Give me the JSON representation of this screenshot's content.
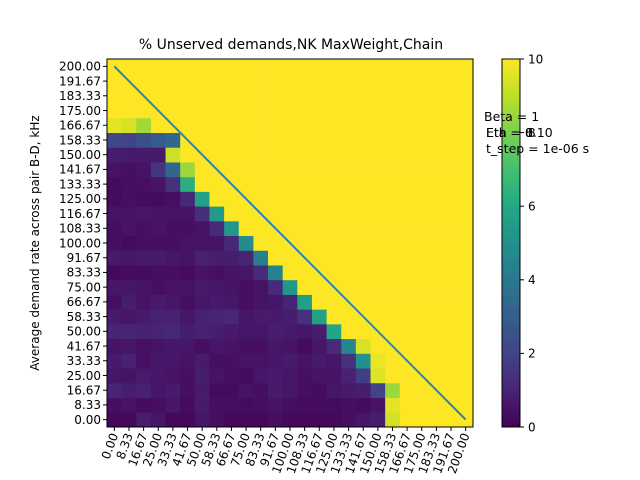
{
  "chart_data": {
    "type": "heatmap",
    "title": "% Unserved demands,NK MaxWeight,Chain",
    "xlabel": "",
    "ylabel": "Average demand rate across pair B-D, kHz",
    "x_tick_labels": [
      "0.00",
      "8.33",
      "16.67",
      "25.00",
      "33.33",
      "41.67",
      "50.00",
      "58.33",
      "66.67",
      "75.00",
      "83.33",
      "91.67",
      "100.00",
      "108.33",
      "116.67",
      "125.00",
      "133.33",
      "141.67",
      "150.00",
      "158.33",
      "166.67",
      "175.00",
      "183.33",
      "191.67",
      "200.00"
    ],
    "y_tick_labels": [
      "0.00",
      "8.33",
      "16.67",
      "25.00",
      "33.33",
      "41.67",
      "50.00",
      "58.33",
      "66.67",
      "75.00",
      "83.33",
      "91.67",
      "100.00",
      "108.33",
      "116.67",
      "125.00",
      "133.33",
      "141.67",
      "150.00",
      "158.33",
      "166.67",
      "175.00",
      "183.33",
      "191.67",
      "200.00"
    ],
    "x_tick_rotation_deg": 70,
    "colorbar": {
      "min": 0,
      "max": 10,
      "ticks": [
        "0",
        "2",
        "4",
        "6",
        "8",
        "10"
      ],
      "colormap": "viridis"
    },
    "overlay_line": {
      "from": [
        0,
        200
      ],
      "to": [
        200,
        0
      ],
      "color": "#2b83ba"
    },
    "annotations": [
      "Beta = 1",
      "Eta = 0.10",
      "Eth = 8",
      "t_step = 1e-06 s"
    ],
    "value_rule": {
      "saturated_value": 10,
      "description_rows_bottom_to_top": "cells above the anti-diagonal are 10; below the diagonal values are low (0.2-1.3) with a bright band of cells just below the diagonal"
    },
    "rows": [
      [
        0.2,
        0.2,
        0.8,
        0.6,
        0.2,
        0.2,
        0.6,
        0.4,
        0.2,
        0.2,
        0.2,
        0.4,
        0.2,
        0.2,
        0.2,
        0.2,
        0.4,
        0.6,
        0.8,
        9.3,
        10,
        10,
        10,
        10,
        10
      ],
      [
        0.4,
        0.5,
        0.3,
        0.4,
        0.6,
        0.3,
        0.7,
        0.4,
        0.4,
        0.3,
        0.4,
        0.5,
        0.4,
        0.3,
        0.3,
        0.3,
        0.4,
        0.3,
        0.5,
        9.6,
        10,
        10,
        10,
        10,
        10
      ],
      [
        1.0,
        0.8,
        0.9,
        0.6,
        0.7,
        0.4,
        0.7,
        0.3,
        0.3,
        0.5,
        0.4,
        0.7,
        0.6,
        0.4,
        0.3,
        0.6,
        0.7,
        0.8,
        2.0,
        8.5,
        10,
        10,
        10,
        10,
        10
      ],
      [
        0.6,
        0.5,
        0.7,
        0.6,
        0.5,
        0.4,
        0.8,
        0.5,
        0.4,
        0.3,
        0.6,
        0.7,
        0.6,
        0.4,
        0.5,
        0.5,
        0.9,
        1.8,
        9.5,
        10,
        10,
        10,
        10,
        10,
        10
      ],
      [
        0.7,
        0.9,
        0.4,
        0.6,
        0.6,
        0.5,
        0.7,
        0.4,
        0.4,
        0.5,
        0.5,
        0.6,
        0.7,
        0.5,
        0.7,
        0.6,
        1.4,
        5.0,
        9.7,
        10,
        10,
        10,
        10,
        10,
        10
      ],
      [
        0.5,
        0.6,
        0.4,
        0.5,
        0.6,
        0.6,
        0.4,
        0.6,
        0.5,
        0.4,
        0.4,
        0.6,
        0.5,
        0.3,
        0.6,
        1.2,
        4.6,
        9.4,
        10,
        10,
        10,
        10,
        10,
        10,
        10
      ],
      [
        1.0,
        1.0,
        0.9,
        1.0,
        1.1,
        0.8,
        0.9,
        0.8,
        0.7,
        0.6,
        0.6,
        0.8,
        0.7,
        0.6,
        0.8,
        5.9,
        10,
        10,
        10,
        10,
        10,
        10,
        10,
        10,
        10
      ],
      [
        0.7,
        0.6,
        0.7,
        0.9,
        0.9,
        0.6,
        0.9,
        1.0,
        1.1,
        0.6,
        0.7,
        0.7,
        0.8,
        1.4,
        5.7,
        10,
        10,
        10,
        10,
        10,
        10,
        10,
        10,
        10,
        10
      ],
      [
        0.4,
        0.8,
        0.5,
        0.7,
        0.6,
        0.4,
        0.6,
        0.7,
        0.6,
        0.4,
        0.5,
        0.6,
        1.0,
        5.6,
        10,
        10,
        10,
        10,
        10,
        10,
        10,
        10,
        10,
        10,
        10
      ],
      [
        0.6,
        0.6,
        0.5,
        0.4,
        0.5,
        0.5,
        0.7,
        0.6,
        0.5,
        0.4,
        0.5,
        1.2,
        5.3,
        10,
        10,
        10,
        10,
        10,
        10,
        10,
        10,
        10,
        10,
        10,
        10
      ],
      [
        0.2,
        0.3,
        0.3,
        0.4,
        0.4,
        0.3,
        0.5,
        0.4,
        0.5,
        0.6,
        1.2,
        4.4,
        10,
        10,
        10,
        10,
        10,
        10,
        10,
        10,
        10,
        10,
        10,
        10,
        10
      ],
      [
        0.7,
        0.6,
        0.7,
        0.7,
        0.6,
        0.5,
        0.9,
        0.8,
        0.8,
        1.0,
        4.3,
        10,
        10,
        10,
        10,
        10,
        10,
        10,
        10,
        10,
        10,
        10,
        10,
        10,
        10
      ],
      [
        0.4,
        0.3,
        0.4,
        0.4,
        0.4,
        0.5,
        0.5,
        0.5,
        1.1,
        4.8,
        10,
        10,
        10,
        10,
        10,
        10,
        10,
        10,
        10,
        10,
        10,
        10,
        10,
        10,
        10
      ],
      [
        0.4,
        0.5,
        0.4,
        0.5,
        0.4,
        0.4,
        0.5,
        1.2,
        5.2,
        10,
        10,
        10,
        10,
        10,
        10,
        10,
        10,
        10,
        10,
        10,
        10,
        10,
        10,
        10,
        10
      ],
      [
        0.5,
        0.5,
        0.6,
        0.5,
        0.5,
        0.5,
        1.3,
        5.4,
        10,
        10,
        10,
        10,
        10,
        10,
        10,
        10,
        10,
        10,
        10,
        10,
        10,
        10,
        10,
        10,
        10
      ],
      [
        0.3,
        0.4,
        0.3,
        0.3,
        0.4,
        1.1,
        5.8,
        10,
        10,
        10,
        10,
        10,
        10,
        10,
        10,
        10,
        10,
        10,
        10,
        10,
        10,
        10,
        10,
        10,
        10
      ],
      [
        0.3,
        0.4,
        0.4,
        0.5,
        1.4,
        6.3,
        10,
        10,
        10,
        10,
        10,
        10,
        10,
        10,
        10,
        10,
        10,
        10,
        10,
        10,
        10,
        10,
        10,
        10,
        10
      ],
      [
        0.5,
        0.4,
        0.5,
        1.5,
        3.3,
        8.5,
        10,
        10,
        10,
        10,
        10,
        10,
        10,
        10,
        10,
        10,
        10,
        10,
        10,
        10,
        10,
        10,
        10,
        10,
        10
      ],
      [
        0.8,
        0.7,
        0.7,
        0.7,
        9.2,
        10,
        10,
        10,
        10,
        10,
        10,
        10,
        10,
        10,
        10,
        10,
        10,
        10,
        10,
        10,
        10,
        10,
        10,
        10,
        10
      ],
      [
        2.2,
        2.0,
        2.4,
        2.9,
        3.3,
        10,
        10,
        10,
        10,
        10,
        10,
        10,
        10,
        10,
        10,
        10,
        10,
        10,
        10,
        10,
        10,
        10,
        10,
        10,
        10
      ],
      [
        9.6,
        9.4,
        8.6,
        10,
        10,
        10,
        10,
        10,
        10,
        10,
        10,
        10,
        10,
        10,
        10,
        10,
        10,
        10,
        10,
        10,
        10,
        10,
        10,
        10,
        10
      ],
      [
        10,
        10,
        10,
        10,
        10,
        10,
        10,
        10,
        10,
        10,
        10,
        10,
        10,
        10,
        10,
        10,
        10,
        10,
        10,
        10,
        10,
        10,
        10,
        10,
        10
      ],
      [
        10,
        10,
        10,
        10,
        10,
        10,
        10,
        10,
        10,
        10,
        10,
        10,
        10,
        10,
        10,
        10,
        10,
        10,
        10,
        10,
        10,
        10,
        10,
        10,
        10
      ],
      [
        10,
        10,
        10,
        10,
        10,
        10,
        10,
        10,
        10,
        10,
        10,
        10,
        10,
        10,
        10,
        10,
        10,
        10,
        10,
        10,
        10,
        10,
        10,
        10,
        10
      ],
      [
        10,
        10,
        10,
        10,
        10,
        10,
        10,
        10,
        10,
        10,
        10,
        10,
        10,
        10,
        10,
        10,
        10,
        10,
        10,
        10,
        10,
        10,
        10,
        10,
        10
      ]
    ]
  }
}
